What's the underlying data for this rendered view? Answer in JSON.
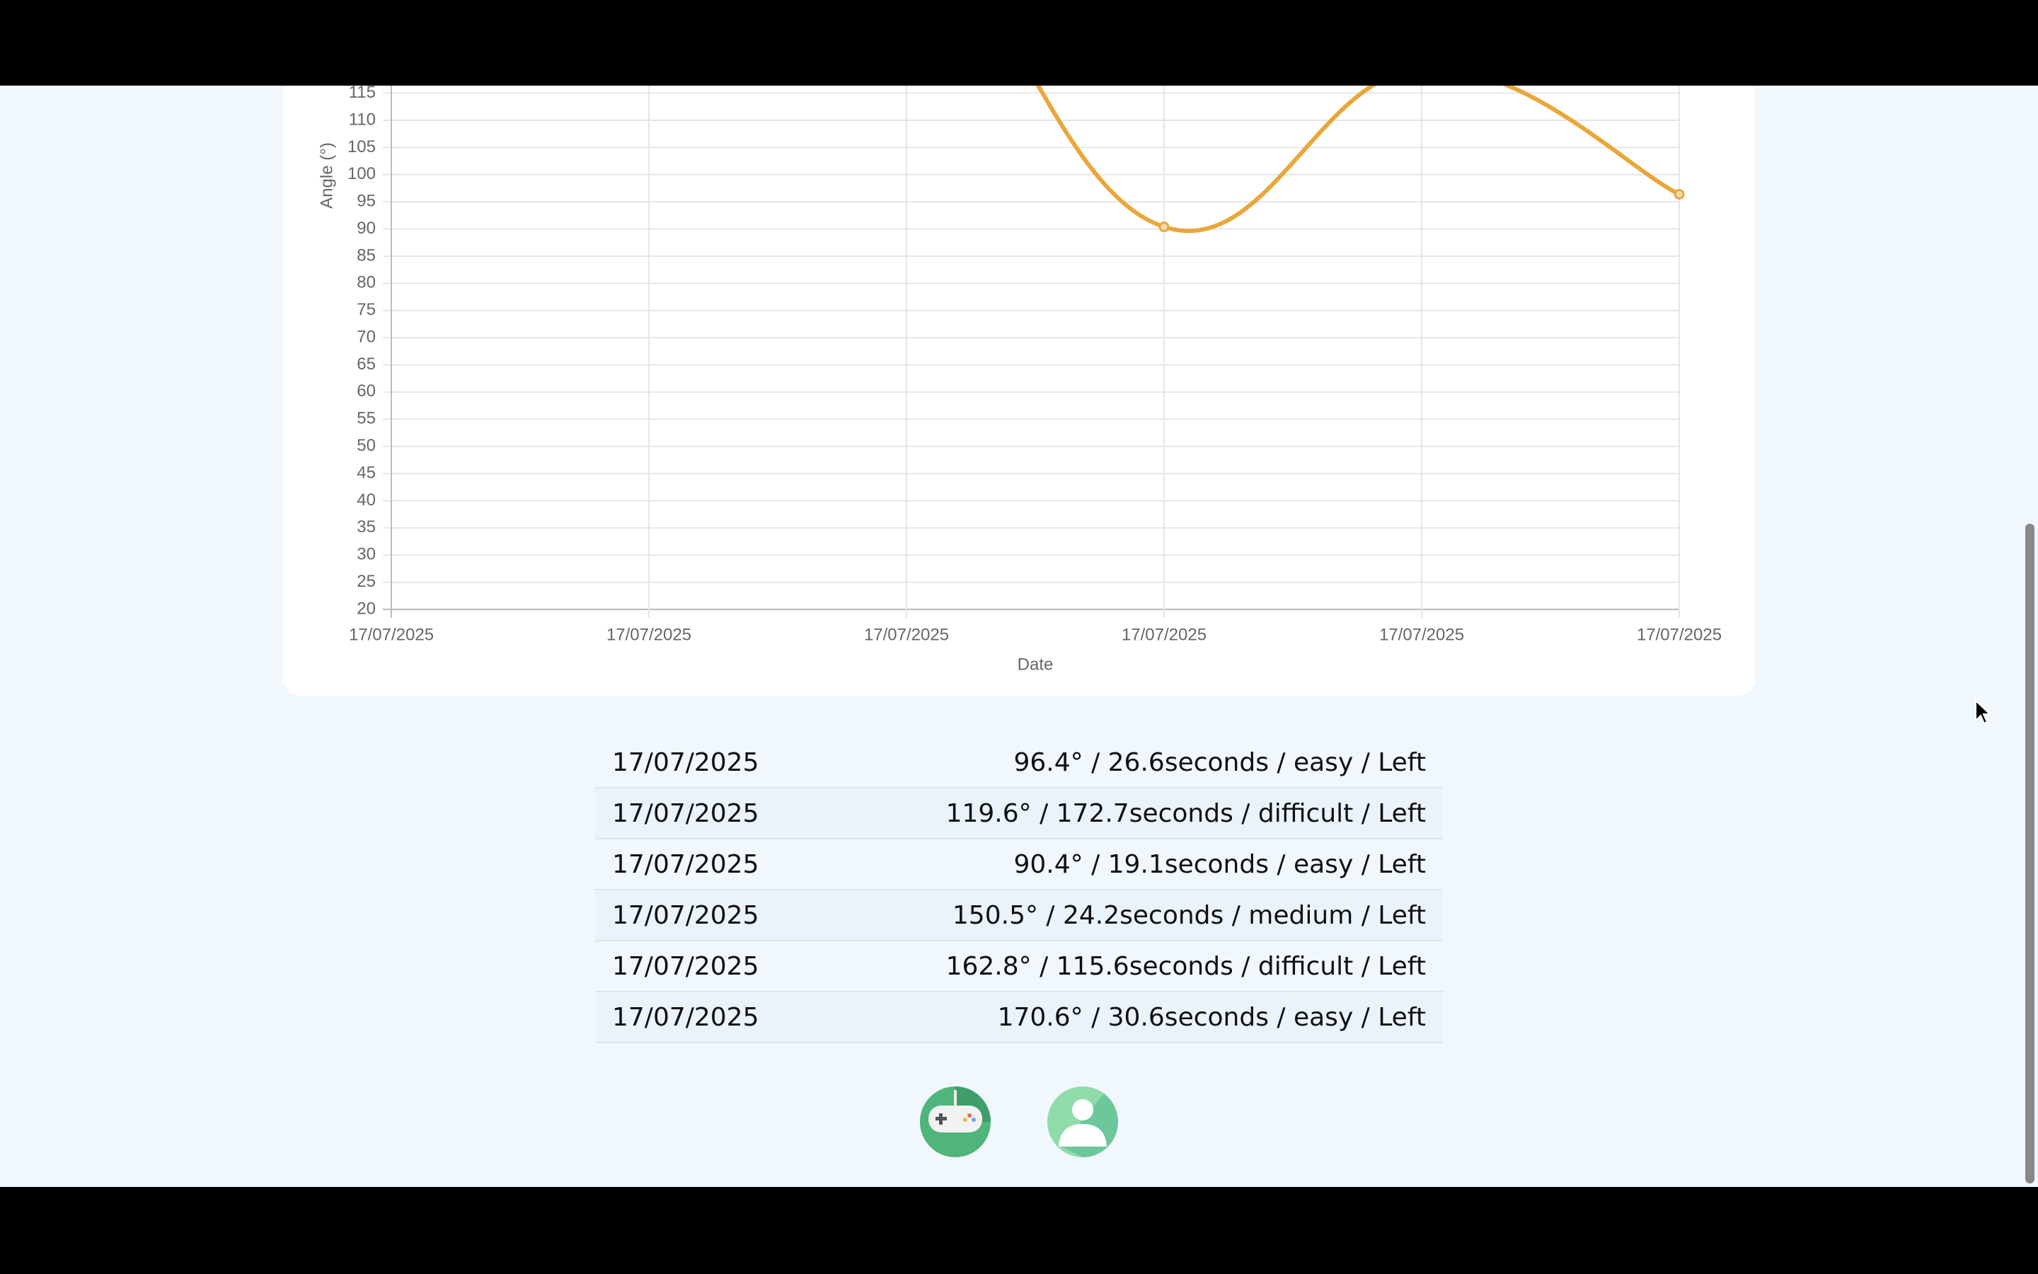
{
  "chart_data": {
    "type": "line",
    "categories": [
      "17/07/2025",
      "17/07/2025",
      "17/07/2025",
      "17/07/2025",
      "17/07/2025",
      "17/07/2025"
    ],
    "series": [
      {
        "color": "#e9a73a",
        "values": [
          170.6,
          162.8,
          150.5,
          90.4,
          119.6,
          96.4
        ]
      }
    ],
    "x_label": "Date",
    "y_label": "Angle (°)",
    "ylim": [
      20,
      175
    ],
    "yticks": [
      20,
      25,
      30,
      35,
      40,
      45,
      50,
      55,
      60,
      65,
      70,
      75,
      80,
      85,
      90,
      95,
      100,
      105,
      110,
      115
    ],
    "grid": true
  },
  "table": {
    "rows": [
      [
        "17/07/2025",
        "96.4° / 26.6seconds / easy / Left"
      ],
      [
        "17/07/2025",
        "119.6° / 172.7seconds / difficult / Left"
      ],
      [
        "17/07/2025",
        "90.4° / 19.1seconds / easy / Left"
      ],
      [
        "17/07/2025",
        "150.5° / 24.2seconds / medium / Left"
      ],
      [
        "17/07/2025",
        "162.8° / 115.6seconds / difficult / Left"
      ],
      [
        "17/07/2025",
        "170.6° / 30.6seconds / easy / Left"
      ]
    ]
  }
}
